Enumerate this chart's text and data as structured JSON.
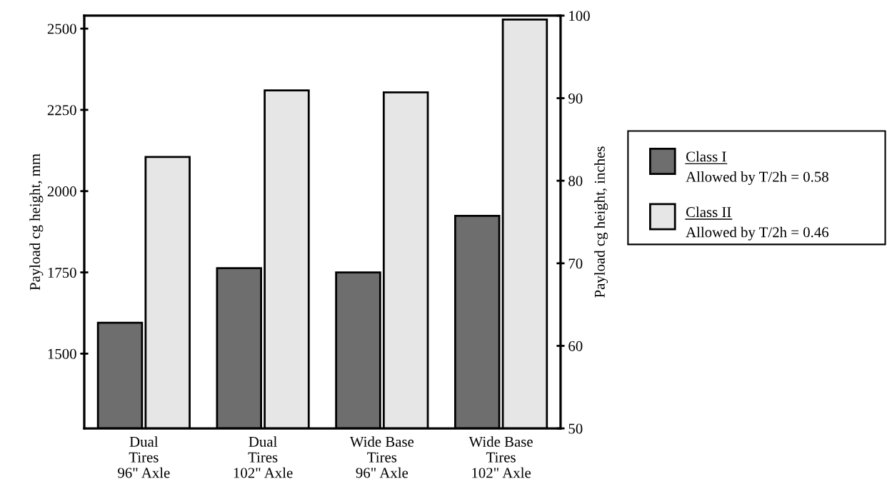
{
  "chart_data": {
    "type": "bar",
    "categories": [
      "Dual\nTires\n96\" Axle",
      "Dual\nTires\n102\" Axle",
      "Wide Base\nTires\n96\" Axle",
      "Wide Base\nTires\n102\" Axle"
    ],
    "series": [
      {
        "name": "Class I",
        "color": "#6e6e6e",
        "values": [
          1595,
          1763,
          1750,
          1924
        ]
      },
      {
        "name": "Class II",
        "color": "#e6e6e6",
        "values": [
          2105,
          2310,
          2304,
          2528
        ]
      }
    ],
    "ylabel": "Payload cg height, mm",
    "y2label": "Payload cg height, inches",
    "ylim": [
      1270,
      2540
    ],
    "yticks": [
      1500,
      1750,
      2000,
      2250,
      2500
    ],
    "y2lim": [
      50,
      100
    ],
    "y2ticks": [
      50,
      60,
      70,
      80,
      90,
      100
    ],
    "annotations": [
      "Allowed by T/2h = 0.58",
      "Allowed by T/2h = 0.46"
    ],
    "legend": "right",
    "grid": false
  }
}
